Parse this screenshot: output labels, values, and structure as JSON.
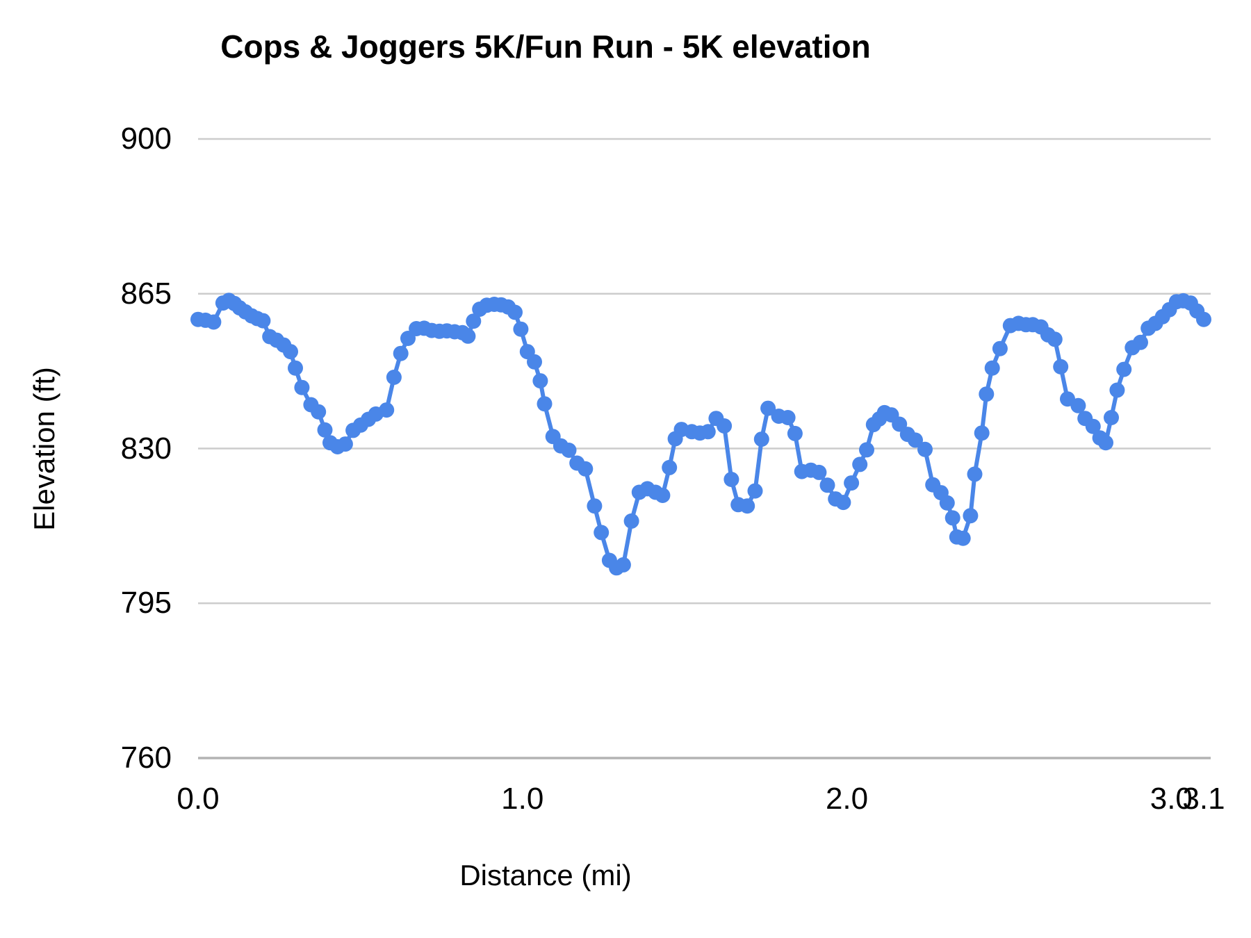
{
  "chart_data": {
    "type": "line",
    "title": "Cops & Joggers 5K/Fun Run - 5K elevation",
    "xlabel": "Distance (mi)",
    "ylabel": "Elevation (ft)",
    "xlim": [
      0,
      3.1
    ],
    "ylim": [
      760,
      900
    ],
    "grid": true,
    "legend": "none",
    "marker": "circle",
    "x_ticks": [
      {
        "v": 0.0,
        "label": "0.0"
      },
      {
        "v": 1.0,
        "label": "1.0"
      },
      {
        "v": 2.0,
        "label": "2.0"
      },
      {
        "v": 3.0,
        "label": "3.0"
      },
      {
        "v": 3.1,
        "label": "3.1"
      }
    ],
    "y_ticks": [
      {
        "v": 900,
        "label": "900"
      },
      {
        "v": 865,
        "label": "865"
      },
      {
        "v": 830,
        "label": "830"
      },
      {
        "v": 795,
        "label": "795"
      },
      {
        "v": 760,
        "label": "760"
      }
    ],
    "colors": {
      "series": "#4a86e8",
      "gridline": "#cccccc",
      "baseline": "#b3b3b3",
      "text": "#000000",
      "background": "#ffffff"
    },
    "series": [
      {
        "name": "5K elevation",
        "x": [
          0.0,
          0.023,
          0.048,
          0.077,
          0.095,
          0.112,
          0.128,
          0.146,
          0.165,
          0.182,
          0.2,
          0.221,
          0.242,
          0.264,
          0.285,
          0.3,
          0.32,
          0.348,
          0.371,
          0.391,
          0.407,
          0.43,
          0.454,
          0.478,
          0.501,
          0.525,
          0.548,
          0.581,
          0.604,
          0.625,
          0.647,
          0.673,
          0.697,
          0.72,
          0.744,
          0.767,
          0.791,
          0.815,
          0.832,
          0.849,
          0.868,
          0.89,
          0.913,
          0.934,
          0.956,
          0.977,
          0.995,
          1.015,
          1.037,
          1.055,
          1.068,
          1.094,
          1.118,
          1.143,
          1.168,
          1.194,
          1.222,
          1.243,
          1.268,
          1.29,
          1.311,
          1.336,
          1.36,
          1.385,
          1.41,
          1.432,
          1.453,
          1.471,
          1.49,
          1.522,
          1.547,
          1.572,
          1.597,
          1.622,
          1.644,
          1.665,
          1.693,
          1.717,
          1.737,
          1.757,
          1.79,
          1.818,
          1.84,
          1.861,
          1.889,
          1.914,
          1.94,
          1.965,
          1.989,
          2.014,
          2.04,
          2.061,
          2.082,
          2.1,
          2.116,
          2.137,
          2.162,
          2.187,
          2.211,
          2.241,
          2.265,
          2.29,
          2.309,
          2.326,
          2.339,
          2.358,
          2.381,
          2.394,
          2.416,
          2.43,
          2.448,
          2.472,
          2.504,
          2.529,
          2.552,
          2.573,
          2.598,
          2.62,
          2.641,
          2.659,
          2.68,
          2.713,
          2.734,
          2.759,
          2.78,
          2.798,
          2.815,
          2.833,
          2.854,
          2.88,
          2.905,
          2.929,
          2.951,
          2.973,
          2.994,
          3.016,
          3.037,
          3.059,
          3.079,
          3.1
        ],
        "y": [
          859.2,
          859.0,
          858.6,
          862.9,
          863.5,
          862.8,
          861.8,
          860.9,
          860.0,
          859.4,
          858.9,
          855.3,
          854.5,
          853.4,
          851.9,
          848.2,
          843.8,
          839.9,
          838.3,
          834.2,
          831.3,
          830.4,
          831.0,
          834.1,
          835.3,
          836.6,
          837.8,
          838.7,
          846.1,
          851.5,
          854.9,
          857.1,
          857.2,
          856.7,
          856.5,
          856.6,
          856.4,
          856.2,
          855.4,
          858.8,
          861.5,
          862.4,
          862.6,
          862.5,
          862.0,
          860.8,
          857.0,
          851.9,
          849.6,
          845.3,
          840.1,
          832.7,
          830.6,
          829.6,
          826.7,
          825.4,
          817.0,
          811.0,
          804.7,
          803.0,
          803.7,
          813.6,
          820.1,
          820.9,
          820.1,
          819.4,
          825.7,
          832.2,
          834.3,
          833.8,
          833.5,
          833.8,
          836.8,
          835.1,
          823.0,
          817.3,
          817.0,
          820.4,
          832.1,
          839.1,
          837.3,
          837.0,
          833.4,
          824.8,
          825.1,
          824.6,
          821.7,
          818.6,
          817.8,
          822.2,
          826.4,
          829.7,
          835.4,
          836.7,
          838.1,
          837.6,
          835.5,
          833.2,
          831.9,
          829.8,
          821.8,
          820.0,
          817.7,
          814.3,
          810.0,
          809.7,
          814.8,
          824.2,
          833.5,
          842.3,
          848.2,
          852.6,
          857.8,
          858.3,
          858.0,
          858.0,
          857.5,
          855.7,
          854.7,
          848.5,
          841.2,
          839.7,
          836.8,
          835.0,
          832.4,
          831.3,
          837.0,
          843.2,
          847.9,
          852.8,
          854.0,
          857.2,
          858.3,
          859.8,
          861.4,
          863.2,
          863.4,
          862.9,
          861.1,
          859.2
        ]
      }
    ]
  }
}
